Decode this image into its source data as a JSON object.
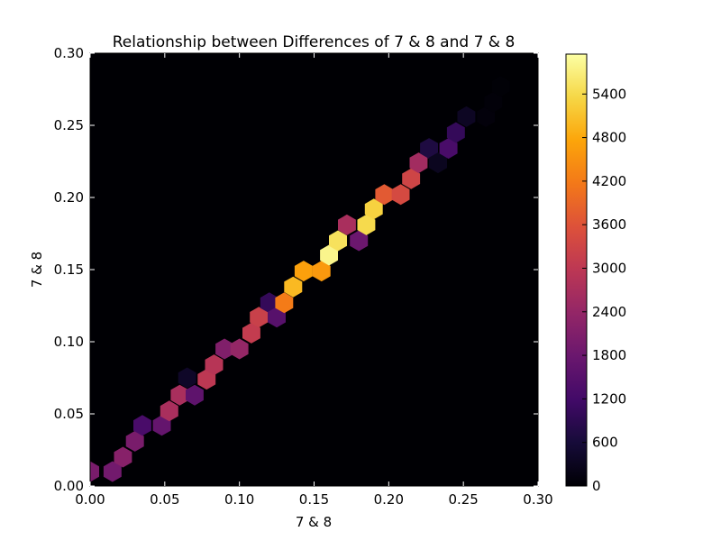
{
  "chart_data": {
    "type": "hexbin",
    "title": "Relationship between Differences of 7 & 8 and 7 & 8",
    "xlabel": "7 & 8",
    "ylabel": "7 & 8",
    "xlim": [
      0.0,
      0.3
    ],
    "ylim": [
      0.0,
      0.3
    ],
    "xticks": [
      "0.00",
      "0.05",
      "0.10",
      "0.15",
      "0.20",
      "0.25",
      "0.30"
    ],
    "yticks": [
      "0.00",
      "0.05",
      "0.10",
      "0.15",
      "0.20",
      "0.25",
      "0.30"
    ],
    "background_color": "#000004",
    "colorbar": {
      "colormap": "inferno",
      "vmin": 0,
      "vmax": 5950,
      "ticks": [
        "0",
        "600",
        "1200",
        "1800",
        "2400",
        "3000",
        "3600",
        "4200",
        "4800",
        "5400"
      ]
    },
    "points": [
      {
        "x": 0.0,
        "y": 0.01,
        "count": 2000
      },
      {
        "x": 0.015,
        "y": 0.01,
        "count": 1900
      },
      {
        "x": 0.022,
        "y": 0.02,
        "count": 2200
      },
      {
        "x": 0.03,
        "y": 0.031,
        "count": 2000
      },
      {
        "x": 0.035,
        "y": 0.042,
        "count": 1300
      },
      {
        "x": 0.048,
        "y": 0.042,
        "count": 1700
      },
      {
        "x": 0.053,
        "y": 0.052,
        "count": 2700
      },
      {
        "x": 0.06,
        "y": 0.063,
        "count": 2700
      },
      {
        "x": 0.065,
        "y": 0.075,
        "count": 400
      },
      {
        "x": 0.07,
        "y": 0.063,
        "count": 1600
      },
      {
        "x": 0.078,
        "y": 0.074,
        "count": 3000
      },
      {
        "x": 0.083,
        "y": 0.084,
        "count": 2900
      },
      {
        "x": 0.09,
        "y": 0.095,
        "count": 2100
      },
      {
        "x": 0.1,
        "y": 0.095,
        "count": 2400
      },
      {
        "x": 0.108,
        "y": 0.106,
        "count": 3100
      },
      {
        "x": 0.113,
        "y": 0.117,
        "count": 3200
      },
      {
        "x": 0.12,
        "y": 0.127,
        "count": 1000
      },
      {
        "x": 0.125,
        "y": 0.117,
        "count": 1500
      },
      {
        "x": 0.13,
        "y": 0.127,
        "count": 4200
      },
      {
        "x": 0.136,
        "y": 0.138,
        "count": 5000
      },
      {
        "x": 0.143,
        "y": 0.149,
        "count": 4700
      },
      {
        "x": 0.155,
        "y": 0.149,
        "count": 4600
      },
      {
        "x": 0.16,
        "y": 0.16,
        "count": 5800
      },
      {
        "x": 0.166,
        "y": 0.17,
        "count": 5500
      },
      {
        "x": 0.172,
        "y": 0.181,
        "count": 2700
      },
      {
        "x": 0.18,
        "y": 0.17,
        "count": 1800
      },
      {
        "x": 0.185,
        "y": 0.181,
        "count": 5400
      },
      {
        "x": 0.19,
        "y": 0.192,
        "count": 5300
      },
      {
        "x": 0.197,
        "y": 0.202,
        "count": 3700
      },
      {
        "x": 0.208,
        "y": 0.202,
        "count": 3400
      },
      {
        "x": 0.215,
        "y": 0.213,
        "count": 3300
      },
      {
        "x": 0.22,
        "y": 0.224,
        "count": 2600
      },
      {
        "x": 0.227,
        "y": 0.234,
        "count": 700
      },
      {
        "x": 0.233,
        "y": 0.224,
        "count": 300
      },
      {
        "x": 0.24,
        "y": 0.234,
        "count": 1300
      },
      {
        "x": 0.245,
        "y": 0.245,
        "count": 1000
      },
      {
        "x": 0.252,
        "y": 0.256,
        "count": 350
      },
      {
        "x": 0.265,
        "y": 0.256,
        "count": 80
      },
      {
        "x": 0.27,
        "y": 0.266,
        "count": 60
      },
      {
        "x": 0.275,
        "y": 0.277,
        "count": 30
      }
    ]
  }
}
